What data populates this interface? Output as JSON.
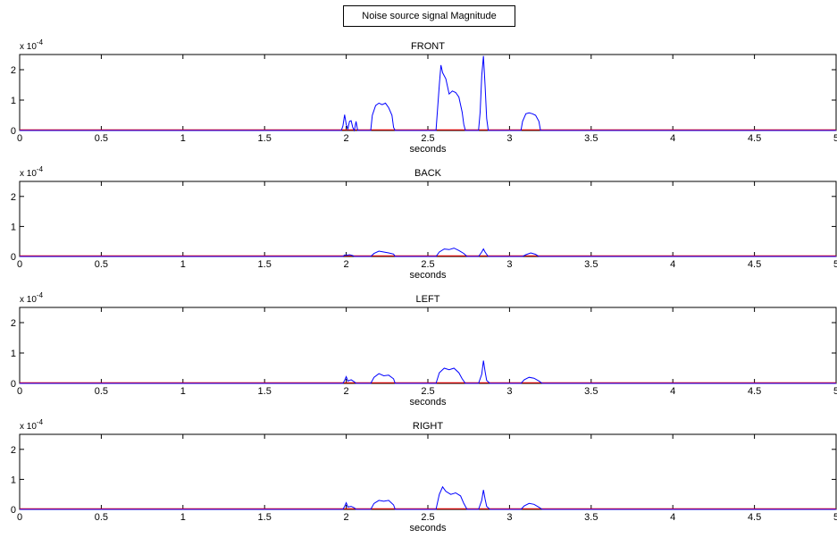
{
  "legend_text": "Noise source signal Magnitude",
  "chart_data": [
    {
      "type": "line",
      "title": "FRONT",
      "xlabel": "seconds",
      "exponent_label": "x 10",
      "exponent_power": "-4",
      "xlim": [
        0,
        5
      ],
      "ylim": [
        0,
        2.5
      ],
      "xticks": [
        0,
        0.5,
        1,
        1.5,
        2,
        2.5,
        3,
        3.5,
        4,
        4.5,
        5
      ],
      "xtick_labels": [
        "0",
        "0.5",
        "1",
        "1.5",
        "2",
        "2.5",
        "3",
        "3.5",
        "4",
        "4.5",
        "5"
      ],
      "yticks": [
        0,
        1,
        2
      ],
      "ytick_labels": [
        "0",
        "1",
        "2"
      ],
      "series": [
        {
          "color": "#0000ff",
          "x": [
            0,
            1.97,
            1.98,
            1.99,
            2.0,
            2.01,
            2.02,
            2.03,
            2.04,
            2.05,
            2.06,
            2.07,
            2.15,
            2.16,
            2.18,
            2.2,
            2.22,
            2.24,
            2.26,
            2.28,
            2.29,
            2.3,
            2.55,
            2.57,
            2.58,
            2.59,
            2.61,
            2.63,
            2.65,
            2.67,
            2.69,
            2.71,
            2.72,
            2.73,
            2.81,
            2.82,
            2.83,
            2.84,
            2.85,
            2.86,
            2.87,
            3.07,
            3.08,
            3.1,
            3.12,
            3.14,
            3.16,
            3.18,
            3.19,
            5
          ],
          "y": [
            0,
            0,
            0.15,
            0.52,
            0.2,
            0.05,
            0.3,
            0.32,
            0.1,
            0,
            0.3,
            0,
            0,
            0.5,
            0.82,
            0.9,
            0.85,
            0.9,
            0.75,
            0.5,
            0.1,
            0,
            0,
            1.5,
            2.15,
            1.9,
            1.7,
            1.2,
            1.3,
            1.25,
            1.1,
            0.6,
            0.2,
            0,
            0,
            0.6,
            1.8,
            2.45,
            1.5,
            0.4,
            0,
            0,
            0.3,
            0.55,
            0.58,
            0.55,
            0.5,
            0.3,
            0,
            0
          ]
        },
        {
          "color": "#ff0000",
          "x": [
            0,
            5
          ],
          "y": [
            0.02,
            0.02
          ]
        }
      ]
    },
    {
      "type": "line",
      "title": "BACK",
      "xlabel": "seconds",
      "exponent_label": "x 10",
      "exponent_power": "-4",
      "xlim": [
        0,
        5
      ],
      "ylim": [
        0,
        2.5
      ],
      "xticks": [
        0,
        0.5,
        1,
        1.5,
        2,
        2.5,
        3,
        3.5,
        4,
        4.5,
        5
      ],
      "xtick_labels": [
        "0",
        "0.5",
        "1",
        "1.5",
        "2",
        "2.5",
        "3",
        "3.5",
        "4",
        "4.5",
        "5"
      ],
      "yticks": [
        0,
        1,
        2
      ],
      "ytick_labels": [
        "0",
        "1",
        "2"
      ],
      "series": [
        {
          "color": "#0000ff",
          "x": [
            0,
            1.98,
            1.99,
            2.0,
            2.02,
            2.04,
            2.05,
            2.15,
            2.17,
            2.2,
            2.23,
            2.26,
            2.29,
            2.3,
            2.55,
            2.57,
            2.6,
            2.63,
            2.66,
            2.69,
            2.72,
            2.74,
            2.81,
            2.83,
            2.84,
            2.85,
            2.87,
            3.08,
            3.1,
            3.13,
            3.16,
            3.18,
            5
          ],
          "y": [
            0,
            0,
            0.05,
            0.04,
            0.06,
            0.03,
            0,
            0,
            0.1,
            0.18,
            0.15,
            0.12,
            0.08,
            0,
            0,
            0.15,
            0.25,
            0.23,
            0.28,
            0.2,
            0.1,
            0,
            0,
            0.15,
            0.25,
            0.15,
            0,
            0,
            0.06,
            0.12,
            0.07,
            0,
            0
          ]
        },
        {
          "color": "#ff0000",
          "x": [
            0,
            5
          ],
          "y": [
            0.02,
            0.02
          ]
        }
      ]
    },
    {
      "type": "line",
      "title": "LEFT",
      "xlabel": "seconds",
      "exponent_label": "x 10",
      "exponent_power": "-4",
      "xlim": [
        0,
        5
      ],
      "ylim": [
        0,
        2.5
      ],
      "xticks": [
        0,
        0.5,
        1,
        1.5,
        2,
        2.5,
        3,
        3.5,
        4,
        4.5,
        5
      ],
      "xtick_labels": [
        "0",
        "0.5",
        "1",
        "1.5",
        "2",
        "2.5",
        "3",
        "3.5",
        "4",
        "4.5",
        "5"
      ],
      "yticks": [
        0,
        1,
        2
      ],
      "ytick_labels": [
        "0",
        "1",
        "2"
      ],
      "series": [
        {
          "color": "#0000ff",
          "x": [
            0,
            1.98,
            1.99,
            2.0,
            2.01,
            2.03,
            2.05,
            2.06,
            2.15,
            2.17,
            2.2,
            2.23,
            2.26,
            2.29,
            2.3,
            2.55,
            2.57,
            2.6,
            2.63,
            2.66,
            2.69,
            2.71,
            2.73,
            2.81,
            2.83,
            2.84,
            2.85,
            2.86,
            2.88,
            3.07,
            3.09,
            3.12,
            3.15,
            3.18,
            3.2,
            5
          ],
          "y": [
            0,
            0,
            0.1,
            0.22,
            0.08,
            0.12,
            0.05,
            0,
            0,
            0.2,
            0.32,
            0.25,
            0.27,
            0.15,
            0,
            0,
            0.35,
            0.5,
            0.45,
            0.5,
            0.35,
            0.15,
            0,
            0,
            0.3,
            0.75,
            0.4,
            0.1,
            0,
            0,
            0.12,
            0.2,
            0.17,
            0.08,
            0,
            0
          ]
        },
        {
          "color": "#ff0000",
          "x": [
            0,
            5
          ],
          "y": [
            0.02,
            0.02
          ]
        }
      ]
    },
    {
      "type": "line",
      "title": "RIGHT",
      "xlabel": "seconds",
      "exponent_label": "x 10",
      "exponent_power": "-4",
      "xlim": [
        0,
        5
      ],
      "ylim": [
        0,
        2.5
      ],
      "xticks": [
        0,
        0.5,
        1,
        1.5,
        2,
        2.5,
        3,
        3.5,
        4,
        4.5,
        5
      ],
      "xtick_labels": [
        "0",
        "0.5",
        "1",
        "1.5",
        "2",
        "2.5",
        "3",
        "3.5",
        "4",
        "4.5",
        "5"
      ],
      "yticks": [
        0,
        1,
        2
      ],
      "ytick_labels": [
        "0",
        "1",
        "2"
      ],
      "series": [
        {
          "color": "#0000ff",
          "x": [
            0,
            1.98,
            1.99,
            2.0,
            2.01,
            2.03,
            2.05,
            2.06,
            2.15,
            2.17,
            2.2,
            2.23,
            2.26,
            2.29,
            2.3,
            2.55,
            2.57,
            2.59,
            2.61,
            2.64,
            2.67,
            2.7,
            2.72,
            2.74,
            2.81,
            2.83,
            2.84,
            2.85,
            2.86,
            2.88,
            3.07,
            3.09,
            3.12,
            3.15,
            3.18,
            3.2,
            5
          ],
          "y": [
            0,
            0,
            0.1,
            0.22,
            0.08,
            0.1,
            0.05,
            0,
            0,
            0.2,
            0.3,
            0.27,
            0.3,
            0.15,
            0,
            0,
            0.5,
            0.75,
            0.6,
            0.5,
            0.55,
            0.45,
            0.2,
            0,
            0,
            0.3,
            0.65,
            0.35,
            0.1,
            0,
            0,
            0.12,
            0.2,
            0.17,
            0.07,
            0,
            0
          ]
        },
        {
          "color": "#ff0000",
          "x": [
            0,
            5
          ],
          "y": [
            0.02,
            0.02
          ]
        }
      ]
    }
  ]
}
